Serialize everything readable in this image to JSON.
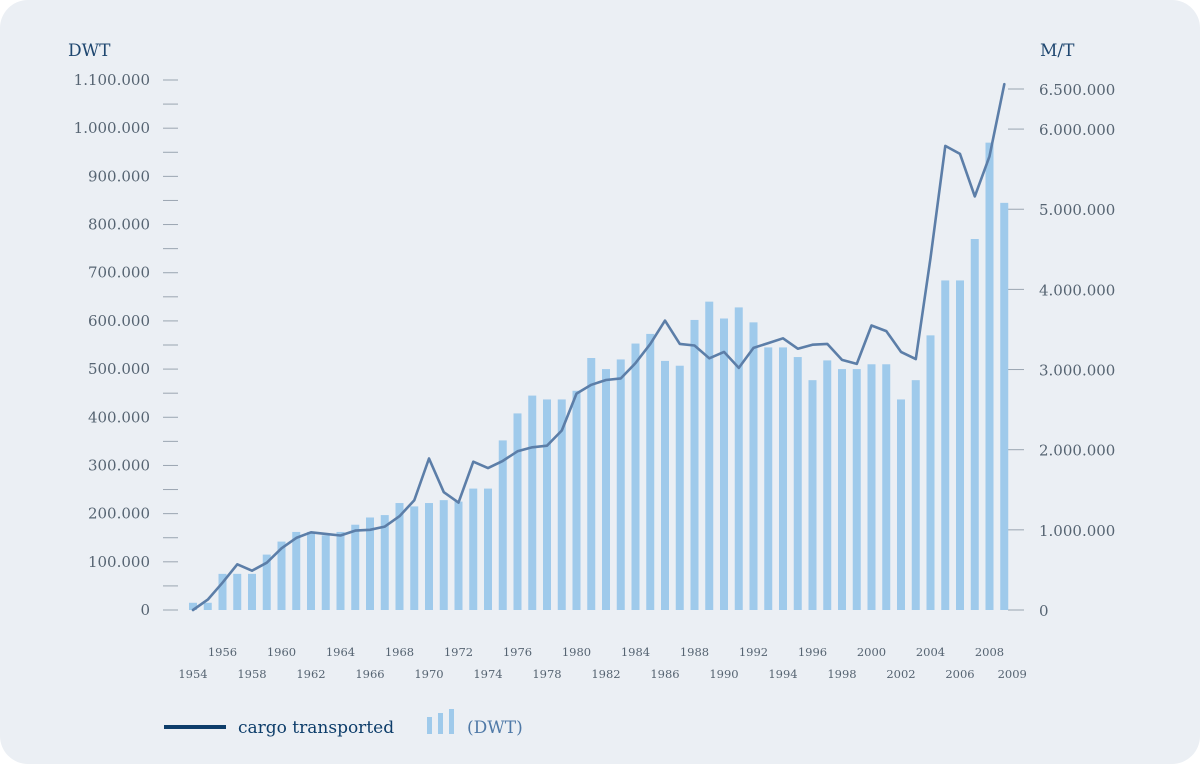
{
  "chart_data": {
    "type": "bar+line",
    "left_axis_title": "DWT",
    "right_axis_title": "M/T",
    "left_ticks": [
      "0",
      "100.000",
      "200.000",
      "300.000",
      "400.000",
      "500.000",
      "600.000",
      "700.000",
      "800.000",
      "900.000",
      "1.000.000",
      "1.100.000"
    ],
    "left_tick_values": [
      0,
      100000,
      200000,
      300000,
      400000,
      500000,
      600000,
      700000,
      800000,
      900000,
      1000000,
      1100000
    ],
    "right_ticks": [
      "0",
      "1.000.000",
      "2.000.000",
      "3.000.000",
      "4.000.000",
      "5.000.000",
      "6.000.000",
      "6.500.000"
    ],
    "right_tick_values": [
      0,
      1000000,
      2000000,
      3000000,
      4000000,
      5000000,
      6000000,
      6500000
    ],
    "ylim_left": [
      0,
      1100000
    ],
    "ylim_right": [
      0,
      6500000
    ],
    "x_tick_labels_even": [
      "1956",
      "1960",
      "1964",
      "1968",
      "1972",
      "1976",
      "1980",
      "1984",
      "1988",
      "1992",
      "1996",
      "2000",
      "2004",
      "2008"
    ],
    "x_tick_labels_odd": [
      "1954",
      "1958",
      "1962",
      "1966",
      "1970",
      "1974",
      "1978",
      "1982",
      "1986",
      "1990",
      "1994",
      "1998",
      "2002",
      "2006",
      "2009"
    ],
    "years": [
      1954,
      1955,
      1956,
      1957,
      1958,
      1959,
      1960,
      1961,
      1962,
      1963,
      1964,
      1965,
      1966,
      1967,
      1968,
      1969,
      1970,
      1971,
      1972,
      1973,
      1974,
      1975,
      1976,
      1977,
      1978,
      1979,
      1980,
      1981,
      1982,
      1983,
      1984,
      1985,
      1986,
      1987,
      1988,
      1989,
      1990,
      1991,
      1992,
      1993,
      1994,
      1995,
      1996,
      1997,
      1998,
      1999,
      2000,
      2001,
      2002,
      2003,
      2004,
      2005,
      2006,
      2007,
      2008,
      2009
    ],
    "series": [
      {
        "name": "(DWT)",
        "kind": "bar",
        "axis": "left",
        "color": "#9fcaeb",
        "values": [
          15000,
          15000,
          75000,
          75000,
          75000,
          115000,
          142000,
          162000,
          162000,
          155000,
          162000,
          177000,
          192000,
          197000,
          222000,
          215000,
          222000,
          228000,
          225000,
          252000,
          252000,
          352000,
          408000,
          445000,
          437000,
          437000,
          455000,
          523000,
          500000,
          520000,
          553000,
          573000,
          517000,
          507000,
          602000,
          640000,
          605000,
          628000,
          597000,
          545000,
          545000,
          525000,
          477000,
          518000,
          500000,
          500000,
          510000,
          510000,
          437000,
          477000,
          570000,
          684000,
          684000,
          770000,
          970000,
          845000
        ]
      },
      {
        "name": "cargo transported",
        "kind": "line",
        "axis": "right",
        "color": "#5c7ea8",
        "values": [
          0,
          130000,
          340000,
          570000,
          490000,
          590000,
          770000,
          900000,
          970000,
          950000,
          930000,
          990000,
          1000000,
          1040000,
          1170000,
          1370000,
          1890000,
          1470000,
          1340000,
          1850000,
          1770000,
          1860000,
          1980000,
          2030000,
          2050000,
          2240000,
          2700000,
          2810000,
          2870000,
          2890000,
          3080000,
          3320000,
          3610000,
          3320000,
          3300000,
          3140000,
          3220000,
          3020000,
          3270000,
          3330000,
          3390000,
          3260000,
          3310000,
          3320000,
          3120000,
          3070000,
          3550000,
          3480000,
          3220000,
          3130000,
          4390000,
          5790000,
          5690000,
          5160000,
          5660000,
          6560000
        ]
      }
    ],
    "legend_line_label": "cargo transported",
    "legend_bar_label": "(DWT)",
    "legend_line_color": "#0d3d6a",
    "legend_bar_color": "#9fcaeb",
    "legend_bar_text_color": "#4f79a7",
    "legend_placement": "bottom-left",
    "grid": false
  }
}
